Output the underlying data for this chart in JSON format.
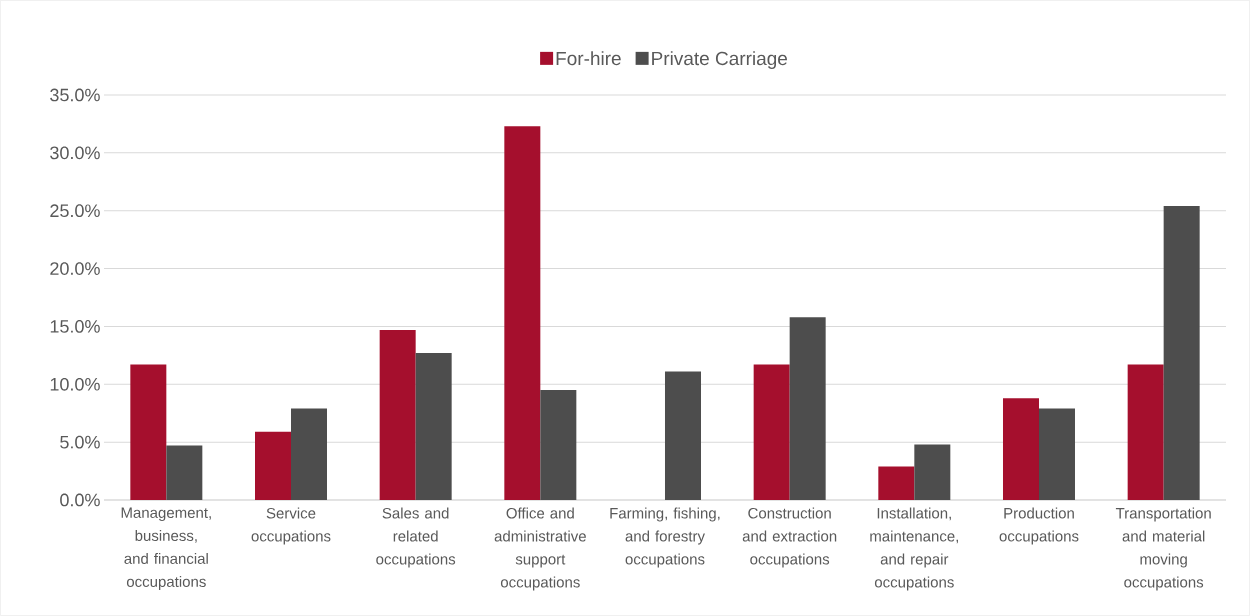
{
  "chart_data": {
    "type": "bar",
    "categories": [
      "Management, business, and financial occupations",
      "Service occupations",
      "Sales and related occupations",
      "Office and administrative support occupations",
      "Farming, fishing, and forestry occupations",
      "Construction and extraction occupations",
      "Installation, maintenance, and repair occupations",
      "Production occupations",
      "Transportation and material moving occupations"
    ],
    "series": [
      {
        "name": "For-hire",
        "color": "#a50f2d",
        "values": [
          11.7,
          5.9,
          14.7,
          32.3,
          0,
          11.7,
          2.9,
          8.8,
          11.7
        ]
      },
      {
        "name": "Private Carriage",
        "color": "#4d4d4d",
        "values": [
          4.7,
          7.9,
          12.7,
          9.5,
          11.1,
          15.8,
          4.8,
          7.9,
          25.4
        ]
      }
    ],
    "ylim": [
      0,
      35
    ],
    "yticks": [
      {
        "value": 0,
        "label": "0.0%"
      },
      {
        "value": 5,
        "label": "5.0%"
      },
      {
        "value": 10,
        "label": "10.0%"
      },
      {
        "value": 15,
        "label": "15.0%"
      },
      {
        "value": 20,
        "label": "20.0%"
      },
      {
        "value": 25,
        "label": "25.0%"
      },
      {
        "value": 30,
        "label": "30.0%"
      },
      {
        "value": 35,
        "label": "35.0%"
      }
    ],
    "grid": "y",
    "legend": "top"
  }
}
